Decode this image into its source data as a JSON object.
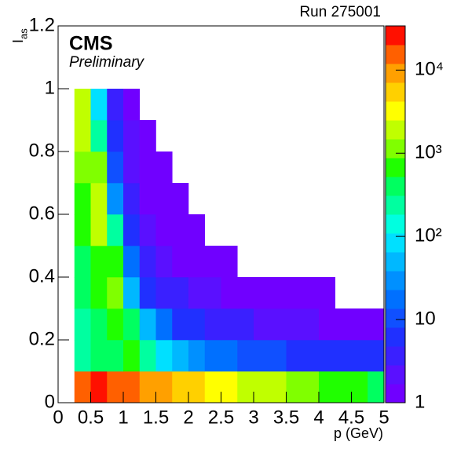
{
  "chart_data": {
    "type": "heatmap",
    "title": "Run 275001",
    "label": "CMS",
    "sublabel": "Preliminary",
    "xlabel": "p (GeV)",
    "ylabel": {
      "main": "I",
      "sub": "as"
    },
    "xlim": [
      0,
      5
    ],
    "ylim": [
      0,
      1.2
    ],
    "xticks": [
      0,
      0.5,
      1,
      1.5,
      2,
      2.5,
      3,
      3.5,
      4,
      4.5,
      5
    ],
    "yticks": [
      0,
      0.2,
      0.4,
      0.6,
      0.8,
      1,
      1.2
    ],
    "zlim": [
      1,
      34000
    ],
    "zlog": true,
    "zticks": [
      1,
      10,
      {
        "value": 100,
        "label": "10²"
      },
      {
        "value": 1000,
        "label": "10³"
      },
      {
        "value": 10000,
        "label": "10⁴"
      }
    ],
    "palette": [
      "#7000ff",
      "#5a10ff",
      "#3a20ff",
      "#2030ff",
      "#1050ff",
      "#0070ff",
      "#0090ff",
      "#00b8ff",
      "#00e0ff",
      "#00ffe0",
      "#00ffa0",
      "#00ff60",
      "#20ff00",
      "#80ff00",
      "#c0ff00",
      "#ffff00",
      "#ffd000",
      "#ffa000",
      "#ff6000",
      "#ff1000"
    ],
    "xbins": [
      0,
      0.25,
      0.5,
      0.75,
      1,
      1.25,
      1.5,
      1.75,
      2,
      2.25,
      2.5,
      2.75,
      3,
      3.25,
      3.5,
      3.75,
      4,
      4.25,
      4.5,
      4.75,
      5
    ],
    "ybins": [
      0,
      0.1,
      0.2,
      0.3,
      0.4,
      0.5,
      0.6,
      0.7,
      0.8,
      0.9,
      1.0,
      1.1,
      1.2
    ],
    "z": [
      [
        null,
        20000,
        30000,
        20000,
        15000,
        10000,
        8000,
        6000,
        5000,
        4000,
        3000,
        2500,
        2000,
        1500,
        1200,
        1000,
        800,
        700,
        600,
        500
      ],
      [
        null,
        300,
        400,
        500,
        800,
        300,
        100,
        50,
        30,
        20,
        15,
        12,
        10,
        9,
        8,
        7,
        6,
        6,
        5,
        5
      ],
      [
        null,
        300,
        400,
        800,
        400,
        50,
        15,
        8,
        5,
        4,
        3,
        3,
        2,
        2,
        2,
        2,
        1,
        1,
        1,
        1
      ],
      [
        null,
        400,
        600,
        1000,
        60,
        8,
        4,
        3,
        2,
        2,
        1,
        1,
        1,
        1,
        1,
        1,
        1,
        null,
        null,
        null
      ],
      [
        null,
        500,
        800,
        800,
        15,
        3,
        2,
        1,
        1,
        1,
        1,
        null,
        null,
        null,
        null,
        null,
        null,
        null,
        null,
        null
      ],
      [
        null,
        600,
        1500,
        200,
        5,
        2,
        1,
        1,
        1,
        null,
        null,
        null,
        null,
        null,
        null,
        null,
        null,
        null,
        null,
        null
      ],
      [
        null,
        800,
        2000,
        30,
        3,
        1,
        1,
        1,
        null,
        null,
        null,
        null,
        null,
        null,
        null,
        null,
        null,
        null,
        null,
        null
      ],
      [
        null,
        1000,
        1000,
        10,
        2,
        1,
        1,
        null,
        null,
        null,
        null,
        null,
        null,
        null,
        null,
        null,
        null,
        null,
        null,
        null
      ],
      [
        null,
        1500,
        300,
        5,
        2,
        1,
        null,
        null,
        null,
        null,
        null,
        null,
        null,
        null,
        null,
        null,
        null,
        null,
        null,
        null
      ],
      [
        null,
        2000,
        100,
        3,
        1,
        null,
        null,
        null,
        null,
        null,
        null,
        null,
        null,
        null,
        null,
        null,
        null,
        null,
        null,
        null
      ],
      [
        null,
        null,
        null,
        null,
        null,
        null,
        null,
        null,
        null,
        null,
        null,
        null,
        null,
        null,
        null,
        null,
        null,
        null,
        null,
        null
      ],
      [
        null,
        null,
        null,
        null,
        null,
        null,
        null,
        null,
        null,
        null,
        null,
        null,
        null,
        null,
        null,
        null,
        null,
        null,
        null,
        null
      ]
    ]
  }
}
